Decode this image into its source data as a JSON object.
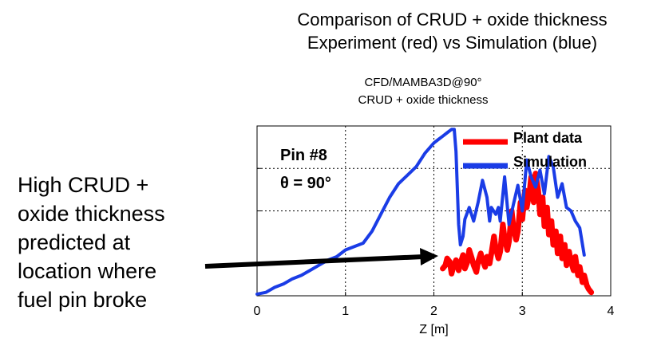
{
  "figure": {
    "title_lines": [
      "Comparison of CRUD + oxide thickness",
      "Experiment (red) vs Simulation (blue)"
    ],
    "annotation_lines": [
      "High CRUD +",
      "oxide thickness",
      "predicted at",
      "location where",
      "fuel pin broke"
    ]
  },
  "chart_data": {
    "type": "line",
    "title": "CFD/MAMBA3D@90°",
    "subtitle": "CRUD + oxide thickness",
    "xlabel": "Z [m]",
    "ylabel": "",
    "xlim": [
      0,
      4
    ],
    "x_ticks": [
      0,
      1,
      2,
      3,
      4
    ],
    "x_tick_labels": [
      "0",
      "1",
      "2",
      "3",
      "4"
    ],
    "y_grid_fraction": [
      0.5,
      0.75
    ],
    "grid": true,
    "inset_text": [
      "Pin #8",
      "θ = 90°"
    ],
    "legend_position": "top-right",
    "colors": {
      "plant": "#ff0000",
      "simulation": "#1a3ce6",
      "arrow": "#000000"
    },
    "series": [
      {
        "name": "Plant data",
        "x": [
          2.1,
          2.13,
          2.15,
          2.18,
          2.2,
          2.22,
          2.25,
          2.28,
          2.3,
          2.33,
          2.35,
          2.38,
          2.4,
          2.43,
          2.45,
          2.48,
          2.5,
          2.53,
          2.55,
          2.58,
          2.6,
          2.63,
          2.65,
          2.68,
          2.7,
          2.73,
          2.75,
          2.78,
          2.8,
          2.83,
          2.85,
          2.88,
          2.9,
          2.93,
          2.95,
          2.98,
          3.0,
          3.03,
          3.05,
          3.08,
          3.1,
          3.13,
          3.15,
          3.18,
          3.2,
          3.23,
          3.25,
          3.28,
          3.3,
          3.33,
          3.35,
          3.38,
          3.4,
          3.43,
          3.45,
          3.48,
          3.5,
          3.53,
          3.55,
          3.58,
          3.6,
          3.63,
          3.65,
          3.68,
          3.7,
          3.73,
          3.75,
          3.78
        ],
        "y": [
          0.16,
          0.18,
          0.22,
          0.2,
          0.13,
          0.17,
          0.21,
          0.15,
          0.19,
          0.24,
          0.16,
          0.2,
          0.27,
          0.22,
          0.18,
          0.14,
          0.2,
          0.25,
          0.21,
          0.17,
          0.23,
          0.19,
          0.25,
          0.35,
          0.28,
          0.22,
          0.26,
          0.42,
          0.34,
          0.27,
          0.32,
          0.5,
          0.4,
          0.33,
          0.38,
          0.55,
          0.45,
          0.62,
          0.52,
          0.6,
          0.7,
          0.55,
          0.72,
          0.62,
          0.48,
          0.58,
          0.41,
          0.52,
          0.36,
          0.44,
          0.3,
          0.38,
          0.25,
          0.35,
          0.22,
          0.3,
          0.18,
          0.26,
          0.2,
          0.15,
          0.23,
          0.12,
          0.17,
          0.08,
          0.12,
          0.06,
          0.04,
          0.02
        ]
      },
      {
        "name": "Simulation",
        "x": [
          0.0,
          0.1,
          0.2,
          0.3,
          0.4,
          0.5,
          0.6,
          0.7,
          0.8,
          0.9,
          1.0,
          1.1,
          1.2,
          1.3,
          1.4,
          1.5,
          1.6,
          1.7,
          1.8,
          1.9,
          2.0,
          2.05,
          2.1,
          2.15,
          2.2,
          2.23,
          2.25,
          2.28,
          2.3,
          2.33,
          2.35,
          2.4,
          2.45,
          2.5,
          2.55,
          2.6,
          2.63,
          2.65,
          2.7,
          2.73,
          2.75,
          2.8,
          2.85,
          2.9,
          2.95,
          3.0,
          3.05,
          3.1,
          3.15,
          3.2,
          3.25,
          3.3,
          3.35,
          3.4,
          3.45,
          3.5,
          3.55,
          3.6,
          3.65,
          3.7
        ],
        "y": [
          0.01,
          0.02,
          0.05,
          0.07,
          0.1,
          0.12,
          0.15,
          0.18,
          0.21,
          0.23,
          0.27,
          0.29,
          0.31,
          0.38,
          0.48,
          0.58,
          0.66,
          0.71,
          0.76,
          0.84,
          0.9,
          0.92,
          0.94,
          0.96,
          0.98,
          0.98,
          0.85,
          0.42,
          0.3,
          0.35,
          0.45,
          0.52,
          0.44,
          0.55,
          0.68,
          0.58,
          0.44,
          0.52,
          0.48,
          0.52,
          0.44,
          0.7,
          0.42,
          0.54,
          0.65,
          0.5,
          0.8,
          0.7,
          0.64,
          0.74,
          0.6,
          0.82,
          0.76,
          0.58,
          0.66,
          0.52,
          0.5,
          0.44,
          0.4,
          0.24
        ]
      }
    ]
  }
}
